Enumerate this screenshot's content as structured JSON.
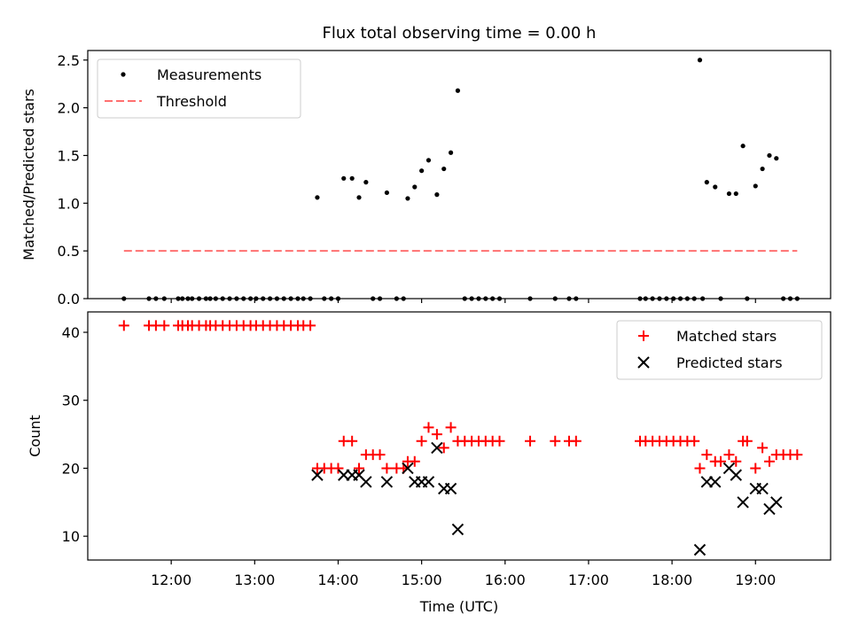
{
  "chart_data": [
    {
      "type": "scatter",
      "title": "Flux total observing time = 0.00 h",
      "xlabel": "",
      "ylabel": "Matched/Predicted stars",
      "xlim": [
        "11:00",
        "19:54"
      ],
      "ylim": [
        0,
        2.6
      ],
      "yticks": [
        "0.0",
        "0.5",
        "1.0",
        "1.5",
        "2.0",
        "2.5"
      ],
      "legend_position": "top-left",
      "series": [
        {
          "name": "Measurements",
          "color": "#000000",
          "marker": "dot",
          "points": [
            [
              "11:26",
              0
            ],
            [
              "11:44",
              0
            ],
            [
              "11:49",
              0
            ],
            [
              "11:55",
              0
            ],
            [
              "12:05",
              0
            ],
            [
              "12:08",
              0
            ],
            [
              "12:12",
              0
            ],
            [
              "12:15",
              0
            ],
            [
              "12:20",
              0
            ],
            [
              "12:25",
              0
            ],
            [
              "12:28",
              0
            ],
            [
              "12:32",
              0
            ],
            [
              "12:37",
              0
            ],
            [
              "12:42",
              0
            ],
            [
              "12:47",
              0
            ],
            [
              "12:52",
              0
            ],
            [
              "12:57",
              0
            ],
            [
              "13:01",
              0
            ],
            [
              "13:06",
              0
            ],
            [
              "13:11",
              0
            ],
            [
              "13:16",
              0
            ],
            [
              "13:21",
              0
            ],
            [
              "13:26",
              0
            ],
            [
              "13:31",
              0
            ],
            [
              "13:35",
              0
            ],
            [
              "13:40",
              0
            ],
            [
              "13:45",
              1.06
            ],
            [
              "13:50",
              0
            ],
            [
              "13:55",
              0
            ],
            [
              "14:00",
              0
            ],
            [
              "14:04",
              1.26
            ],
            [
              "14:10",
              1.26
            ],
            [
              "14:15",
              1.06
            ],
            [
              "14:20",
              1.22
            ],
            [
              "14:25",
              0
            ],
            [
              "14:30",
              0
            ],
            [
              "14:35",
              1.11
            ],
            [
              "14:42",
              0
            ],
            [
              "14:47",
              0
            ],
            [
              "14:50",
              1.05
            ],
            [
              "14:55",
              1.17
            ],
            [
              "15:00",
              1.34
            ],
            [
              "15:05",
              1.45
            ],
            [
              "15:11",
              1.09
            ],
            [
              "15:16",
              1.36
            ],
            [
              "15:21",
              1.53
            ],
            [
              "15:26",
              2.18
            ],
            [
              "15:31",
              0
            ],
            [
              "15:36",
              0
            ],
            [
              "15:41",
              0
            ],
            [
              "15:46",
              0
            ],
            [
              "15:51",
              0
            ],
            [
              "15:56",
              0
            ],
            [
              "16:18",
              0
            ],
            [
              "16:36",
              0
            ],
            [
              "16:46",
              0
            ],
            [
              "16:51",
              0
            ],
            [
              "17:37",
              0
            ],
            [
              "17:41",
              0
            ],
            [
              "17:46",
              0
            ],
            [
              "17:51",
              0
            ],
            [
              "17:56",
              0
            ],
            [
              "18:01",
              0
            ],
            [
              "18:06",
              0
            ],
            [
              "18:11",
              0
            ],
            [
              "18:16",
              0
            ],
            [
              "18:22",
              0
            ],
            [
              "18:20",
              2.5
            ],
            [
              "18:25",
              1.22
            ],
            [
              "18:31",
              1.17
            ],
            [
              "18:35",
              0
            ],
            [
              "18:41",
              1.1
            ],
            [
              "18:46",
              1.1
            ],
            [
              "18:51",
              1.6
            ],
            [
              "18:54",
              0
            ],
            [
              "19:00",
              1.18
            ],
            [
              "19:05",
              1.36
            ],
            [
              "19:10",
              1.5
            ],
            [
              "19:15",
              1.47
            ],
            [
              "19:20",
              0
            ],
            [
              "19:25",
              0
            ],
            [
              "19:30",
              0
            ]
          ]
        },
        {
          "name": "Threshold",
          "color": "#ff7070",
          "line_style": "dashed",
          "points": [
            [
              "11:26",
              0.5
            ],
            [
              "19:30",
              0.5
            ]
          ]
        }
      ]
    },
    {
      "type": "scatter",
      "title": "",
      "xlabel": "Time (UTC)",
      "ylabel": "Count",
      "xlim": [
        "11:00",
        "19:54"
      ],
      "ylim": [
        6.5,
        43
      ],
      "xticks": [
        "12:00",
        "13:00",
        "14:00",
        "15:00",
        "16:00",
        "17:00",
        "18:00",
        "19:00"
      ],
      "yticks": [
        "10",
        "20",
        "30",
        "40"
      ],
      "legend_position": "top-right",
      "series": [
        {
          "name": "Matched stars",
          "color": "#ff0000",
          "marker": "plus",
          "points": [
            [
              "11:26",
              41
            ],
            [
              "11:44",
              41
            ],
            [
              "11:49",
              41
            ],
            [
              "11:55",
              41
            ],
            [
              "12:05",
              41
            ],
            [
              "12:08",
              41
            ],
            [
              "12:12",
              41
            ],
            [
              "12:15",
              41
            ],
            [
              "12:20",
              41
            ],
            [
              "12:25",
              41
            ],
            [
              "12:28",
              41
            ],
            [
              "12:32",
              41
            ],
            [
              "12:37",
              41
            ],
            [
              "12:42",
              41
            ],
            [
              "12:47",
              41
            ],
            [
              "12:52",
              41
            ],
            [
              "12:57",
              41
            ],
            [
              "13:01",
              41
            ],
            [
              "13:06",
              41
            ],
            [
              "13:11",
              41
            ],
            [
              "13:16",
              41
            ],
            [
              "13:21",
              41
            ],
            [
              "13:26",
              41
            ],
            [
              "13:31",
              41
            ],
            [
              "13:35",
              41
            ],
            [
              "13:40",
              41
            ],
            [
              "13:45",
              20
            ],
            [
              "13:50",
              20
            ],
            [
              "13:55",
              20
            ],
            [
              "14:00",
              20
            ],
            [
              "14:04",
              24
            ],
            [
              "14:10",
              24
            ],
            [
              "14:15",
              20
            ],
            [
              "14:20",
              22
            ],
            [
              "14:25",
              22
            ],
            [
              "14:30",
              22
            ],
            [
              "14:35",
              20
            ],
            [
              "14:42",
              20
            ],
            [
              "14:47",
              20
            ],
            [
              "14:50",
              21
            ],
            [
              "14:55",
              21
            ],
            [
              "15:00",
              24
            ],
            [
              "15:05",
              26
            ],
            [
              "15:11",
              25
            ],
            [
              "15:16",
              23
            ],
            [
              "15:21",
              26
            ],
            [
              "15:26",
              24
            ],
            [
              "15:31",
              24
            ],
            [
              "15:36",
              24
            ],
            [
              "15:41",
              24
            ],
            [
              "15:46",
              24
            ],
            [
              "15:51",
              24
            ],
            [
              "15:56",
              24
            ],
            [
              "16:18",
              24
            ],
            [
              "16:36",
              24
            ],
            [
              "16:46",
              24
            ],
            [
              "16:51",
              24
            ],
            [
              "17:37",
              24
            ],
            [
              "17:41",
              24
            ],
            [
              "17:46",
              24
            ],
            [
              "17:51",
              24
            ],
            [
              "17:56",
              24
            ],
            [
              "18:01",
              24
            ],
            [
              "18:06",
              24
            ],
            [
              "18:11",
              24
            ],
            [
              "18:16",
              24
            ],
            [
              "18:20",
              20
            ],
            [
              "18:25",
              22
            ],
            [
              "18:31",
              21
            ],
            [
              "18:35",
              21
            ],
            [
              "18:41",
              22
            ],
            [
              "18:46",
              21
            ],
            [
              "18:51",
              24
            ],
            [
              "18:54",
              24
            ],
            [
              "19:00",
              20
            ],
            [
              "19:05",
              23
            ],
            [
              "19:10",
              21
            ],
            [
              "19:15",
              22
            ],
            [
              "19:20",
              22
            ],
            [
              "19:25",
              22
            ],
            [
              "19:30",
              22
            ]
          ]
        },
        {
          "name": "Predicted stars",
          "color": "#000000",
          "marker": "x",
          "points": [
            [
              "13:45",
              19
            ],
            [
              "14:04",
              19
            ],
            [
              "14:10",
              19
            ],
            [
              "14:15",
              19
            ],
            [
              "14:20",
              18
            ],
            [
              "14:35",
              18
            ],
            [
              "14:50",
              20
            ],
            [
              "14:55",
              18
            ],
            [
              "15:00",
              18
            ],
            [
              "15:05",
              18
            ],
            [
              "15:11",
              23
            ],
            [
              "15:16",
              17
            ],
            [
              "15:21",
              17
            ],
            [
              "15:26",
              11
            ],
            [
              "18:20",
              8
            ],
            [
              "18:25",
              18
            ],
            [
              "18:31",
              18
            ],
            [
              "18:41",
              20
            ],
            [
              "18:46",
              19
            ],
            [
              "18:51",
              15
            ],
            [
              "19:00",
              17
            ],
            [
              "19:05",
              17
            ],
            [
              "19:10",
              14
            ],
            [
              "19:15",
              15
            ]
          ]
        }
      ]
    }
  ]
}
